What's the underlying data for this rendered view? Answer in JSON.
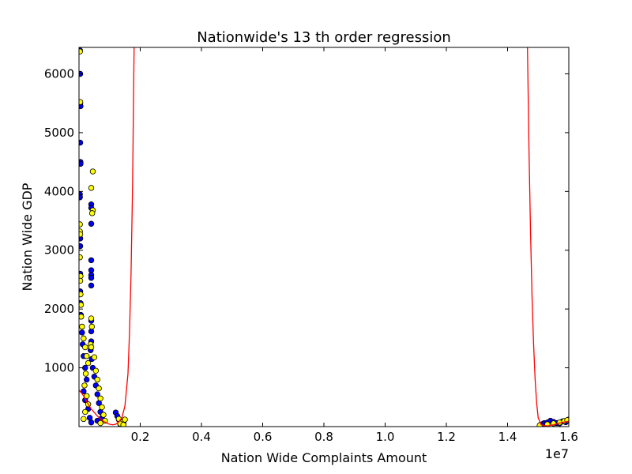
{
  "chart_data": {
    "type": "scatter",
    "title": "Nationwide's  13 th order regression",
    "xlabel": "Nation Wide Complaints Amount",
    "ylabel": "Nation Wide GDP",
    "x_offset_label": "1e7",
    "xlim": [
      0,
      1.6
    ],
    "ylim": [
      0,
      6450
    ],
    "x_ticks": [
      0.2,
      0.4,
      0.6,
      0.8,
      1.0,
      1.2,
      1.4,
      1.6
    ],
    "x_tick_labels": [
      "0.2",
      "0.4",
      "0.6",
      "0.8",
      "1.0",
      "1.2",
      "1.4",
      "1.6"
    ],
    "y_ticks": [
      1000,
      2000,
      3000,
      4000,
      5000,
      6000
    ],
    "y_tick_labels": [
      "1000",
      "2000",
      "3000",
      "4000",
      "5000",
      "6000"
    ],
    "grid": false,
    "colors": {
      "series_a": "#0000ff",
      "series_b": "#ffff00",
      "regression": "#ff0000",
      "marker_edge": "#000000"
    },
    "series": [
      {
        "values": [
          [
            0.003,
            6400
          ],
          [
            0.004,
            6000
          ],
          [
            0.004,
            5500
          ],
          [
            0.005,
            5450
          ],
          [
            0.004,
            4830
          ],
          [
            0.005,
            4500
          ],
          [
            0.005,
            4470
          ],
          [
            0.003,
            3950
          ],
          [
            0.003,
            3900
          ],
          [
            0.004,
            3200
          ],
          [
            0.004,
            3070
          ],
          [
            0.004,
            2600
          ],
          [
            0.004,
            2300
          ],
          [
            0.005,
            2100
          ],
          [
            0.006,
            1900
          ],
          [
            0.01,
            1600
          ],
          [
            0.012,
            1400
          ],
          [
            0.015,
            1200
          ],
          [
            0.02,
            1000
          ],
          [
            0.025,
            800
          ],
          [
            0.015,
            600
          ],
          [
            0.02,
            450
          ],
          [
            0.03,
            300
          ],
          [
            0.035,
            150
          ],
          [
            0.04,
            70
          ],
          [
            0.04,
            3780
          ],
          [
            0.04,
            3720
          ],
          [
            0.04,
            3450
          ],
          [
            0.04,
            2830
          ],
          [
            0.04,
            2660
          ],
          [
            0.04,
            2580
          ],
          [
            0.04,
            2530
          ],
          [
            0.04,
            2400
          ],
          [
            0.04,
            1800
          ],
          [
            0.04,
            1620
          ],
          [
            0.04,
            1450
          ],
          [
            0.038,
            1300
          ],
          [
            0.042,
            1150
          ],
          [
            0.045,
            1000
          ],
          [
            0.05,
            850
          ],
          [
            0.055,
            700
          ],
          [
            0.06,
            550
          ],
          [
            0.065,
            400
          ],
          [
            0.07,
            250
          ],
          [
            0.075,
            150
          ],
          [
            0.06,
            100
          ],
          [
            0.12,
            240
          ],
          [
            0.125,
            180
          ],
          [
            0.13,
            120
          ],
          [
            0.14,
            90
          ],
          [
            0.145,
            60
          ],
          [
            0.135,
            40
          ],
          [
            1.508,
            30
          ],
          [
            1.515,
            45
          ],
          [
            1.52,
            60
          ],
          [
            1.53,
            70
          ],
          [
            1.54,
            100
          ],
          [
            1.55,
            80
          ],
          [
            1.56,
            60
          ],
          [
            1.57,
            55
          ],
          [
            1.58,
            90
          ],
          [
            1.59,
            75
          ]
        ]
      },
      {
        "values": [
          [
            0.003,
            6380
          ],
          [
            0.004,
            5520
          ],
          [
            0.003,
            3440
          ],
          [
            0.003,
            3320
          ],
          [
            0.004,
            3270
          ],
          [
            0.003,
            2880
          ],
          [
            0.005,
            2560
          ],
          [
            0.004,
            2480
          ],
          [
            0.005,
            2250
          ],
          [
            0.006,
            2070
          ],
          [
            0.007,
            1870
          ],
          [
            0.01,
            1700
          ],
          [
            0.015,
            1500
          ],
          [
            0.02,
            1350
          ],
          [
            0.025,
            1200
          ],
          [
            0.03,
            1080
          ],
          [
            0.022,
            900
          ],
          [
            0.018,
            700
          ],
          [
            0.025,
            520
          ],
          [
            0.03,
            380
          ],
          [
            0.02,
            250
          ],
          [
            0.015,
            130
          ],
          [
            0.045,
            4340
          ],
          [
            0.04,
            4060
          ],
          [
            0.045,
            3680
          ],
          [
            0.043,
            3630
          ],
          [
            0.04,
            1840
          ],
          [
            0.042,
            1700
          ],
          [
            0.038,
            1400
          ],
          [
            0.04,
            1350
          ],
          [
            0.05,
            1180
          ],
          [
            0.055,
            950
          ],
          [
            0.06,
            800
          ],
          [
            0.065,
            650
          ],
          [
            0.07,
            480
          ],
          [
            0.075,
            330
          ],
          [
            0.08,
            200
          ],
          [
            0.085,
            100
          ],
          [
            0.07,
            60
          ],
          [
            0.13,
            130
          ],
          [
            0.14,
            70
          ],
          [
            0.15,
            120
          ],
          [
            0.135,
            50
          ],
          [
            0.145,
            30
          ],
          [
            1.505,
            20
          ],
          [
            1.53,
            40
          ],
          [
            1.55,
            55
          ],
          [
            1.57,
            70
          ],
          [
            1.585,
            95
          ],
          [
            1.6,
            120
          ],
          [
            1.595,
            110
          ]
        ]
      }
    ],
    "regression_curve": [
      [
        0.0,
        620
      ],
      [
        0.01,
        560
      ],
      [
        0.02,
        480
      ],
      [
        0.03,
        380
      ],
      [
        0.04,
        300
      ],
      [
        0.05,
        240
      ],
      [
        0.06,
        180
      ],
      [
        0.07,
        130
      ],
      [
        0.08,
        90
      ],
      [
        0.09,
        60
      ],
      [
        0.1,
        40
      ],
      [
        0.11,
        30
      ],
      [
        0.12,
        40
      ],
      [
        0.13,
        80
      ],
      [
        0.14,
        150
      ],
      [
        0.15,
        350
      ],
      [
        0.16,
        900
      ],
      [
        0.165,
        1600
      ],
      [
        0.17,
        2600
      ],
      [
        0.175,
        4100
      ],
      [
        0.18,
        6450
      ],
      null,
      [
        1.465,
        6450
      ],
      [
        1.47,
        4700
      ],
      [
        1.475,
        3300
      ],
      [
        1.48,
        2200
      ],
      [
        1.485,
        1400
      ],
      [
        1.49,
        800
      ],
      [
        1.495,
        400
      ],
      [
        1.5,
        150
      ],
      [
        1.51,
        30
      ],
      [
        1.53,
        10
      ],
      [
        1.55,
        30
      ],
      [
        1.57,
        60
      ],
      [
        1.6,
        90
      ]
    ]
  }
}
